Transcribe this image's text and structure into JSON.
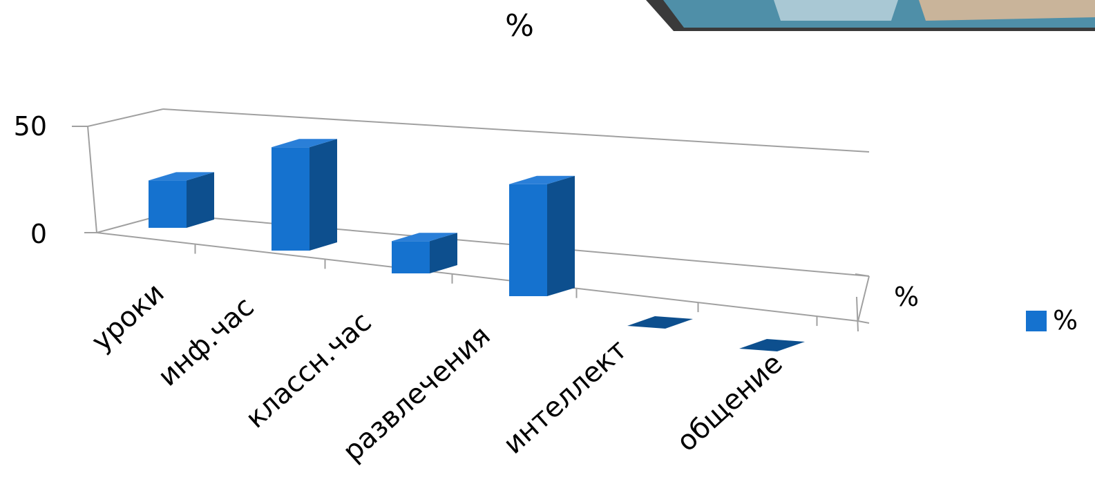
{
  "chart_data": {
    "type": "bar",
    "title": "%",
    "categories": [
      "уроки",
      "инф.час",
      "классн.час",
      "развлечения",
      "интеллект",
      "общение"
    ],
    "series": [
      {
        "name": "%",
        "values": [
          22,
          48,
          15,
          52,
          0,
          0
        ]
      }
    ],
    "series_axis_label": "%",
    "ylim": [
      0,
      50
    ],
    "yticks": [
      0,
      50
    ],
    "legend": "right",
    "colors": {
      "bar_front": "#1572cf",
      "bar_side": "#0d4f8e",
      "bar_top": "#2a7fd8",
      "frame": "#a0a0a0",
      "banner": "#3c7f97"
    }
  }
}
